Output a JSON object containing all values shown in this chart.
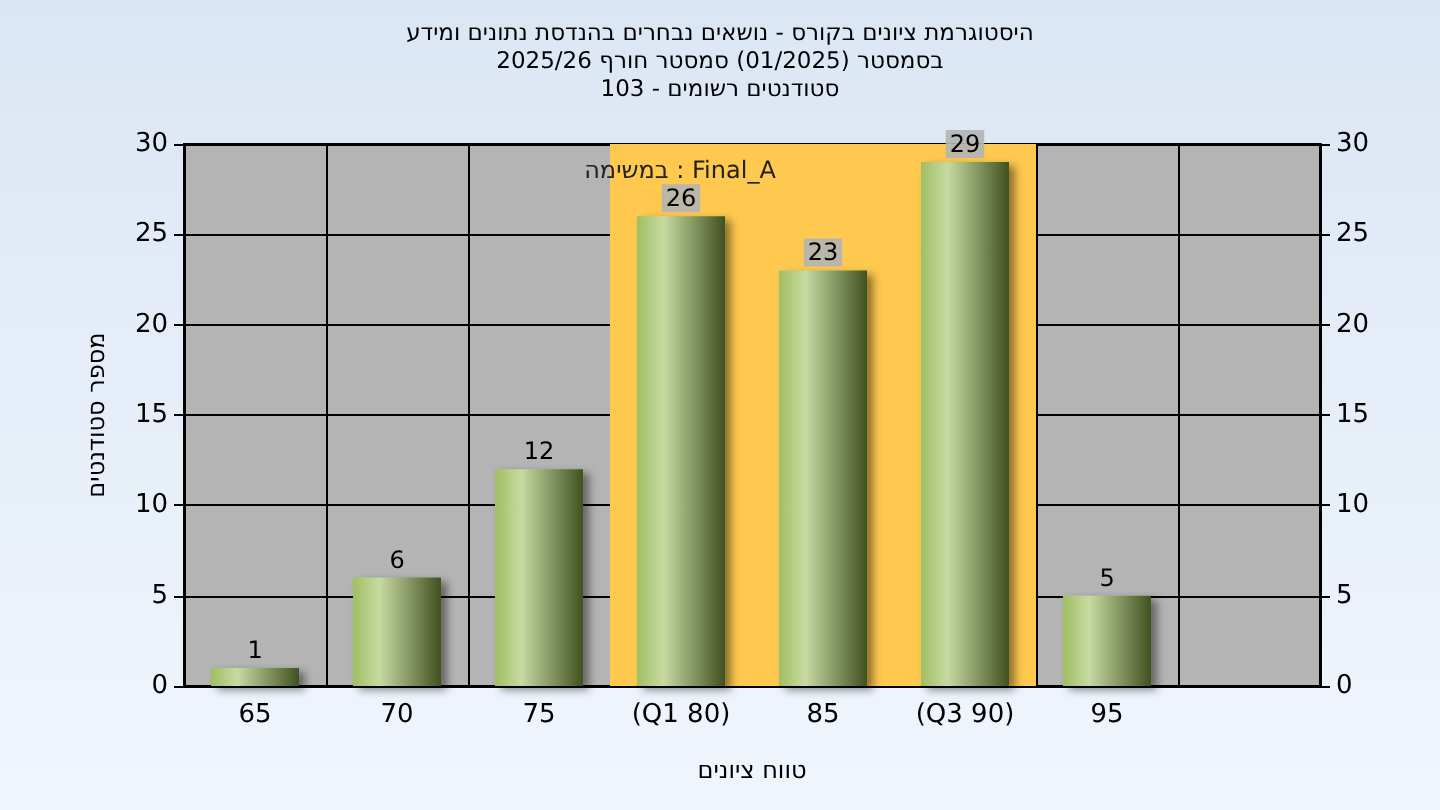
{
  "chart_data": {
    "type": "bar",
    "title": "היסטוגרמת ציונים בקורס - נושאים נבחרים בהנדסת נתונים ומידע",
    "subtitle": "בסמסטר (01/2025) סמסטר חורף 2025/26\nסטודנטים רשומים - 103",
    "xlabel": "טווח ציונים",
    "ylabel": "מספר סטודנטים",
    "annotations": [
      "Final_A : במשימה"
    ],
    "categories": [
      "65",
      "70",
      "75",
      "(Q1 80)",
      "85",
      "(Q3 90)",
      "95",
      null
    ],
    "values": [
      1,
      6,
      12,
      26,
      23,
      29,
      5,
      null
    ],
    "color": "#8fb445",
    "ylim": [
      0,
      30
    ],
    "yticks": [
      0,
      5,
      10,
      15,
      20,
      25,
      30
    ],
    "y2lim": [
      0,
      30
    ],
    "y2ticks": [
      0,
      5,
      10,
      15,
      20,
      25,
      30
    ],
    "bands": [
      {
        "axis": "x",
        "from": "(Q1 80)",
        "to": "(Q3 90)",
        "color": "#ffc94f"
      }
    ],
    "data_labels": true,
    "grid": true
  }
}
